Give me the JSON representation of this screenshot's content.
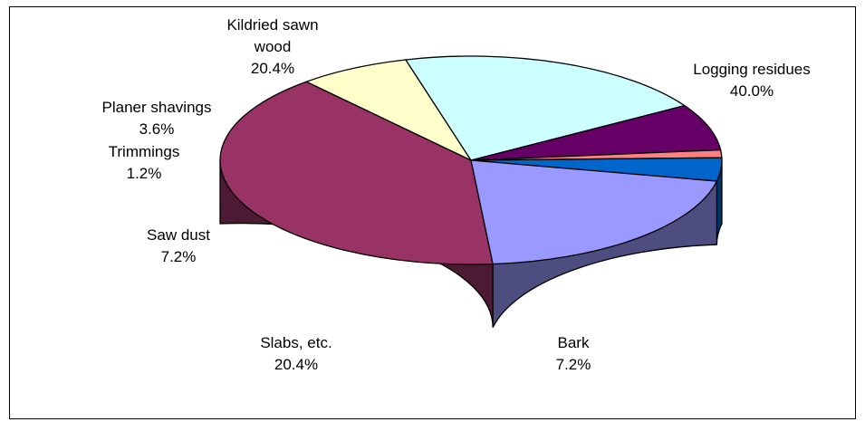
{
  "chart_data": {
    "type": "pie",
    "style": "3d-exploded-ellipse",
    "title": "",
    "slices": [
      {
        "label_lines": [
          "Logging residues"
        ],
        "pct_label": "40.0%",
        "value": 40.0,
        "top_color": "#993366",
        "side_color": "#4c1a33"
      },
      {
        "label_lines": [
          "Bark"
        ],
        "pct_label": "7.2%",
        "value": 7.2,
        "top_color": "#ffffcc",
        "side_color": "#808066"
      },
      {
        "label_lines": [
          "Slabs, etc."
        ],
        "pct_label": "20.4%",
        "value": 20.4,
        "top_color": "#ccffff",
        "side_color": "#668080"
      },
      {
        "label_lines": [
          "Saw dust"
        ],
        "pct_label": "7.2%",
        "value": 7.2,
        "top_color": "#660066",
        "side_color": "#330033"
      },
      {
        "label_lines": [
          "Trimmings"
        ],
        "pct_label": "1.2%",
        "value": 1.2,
        "top_color": "#ff8080",
        "side_color": "#804040"
      },
      {
        "label_lines": [
          "Planer shavings"
        ],
        "pct_label": "3.6%",
        "value": 3.6,
        "top_color": "#0066cc",
        "side_color": "#003366"
      },
      {
        "label_lines": [
          "Kildried sawn",
          "wood"
        ],
        "pct_label": "20.4%",
        "value": 20.4,
        "top_color": "#9999ff",
        "side_color": "#4d4d80"
      }
    ],
    "legend": "none"
  }
}
